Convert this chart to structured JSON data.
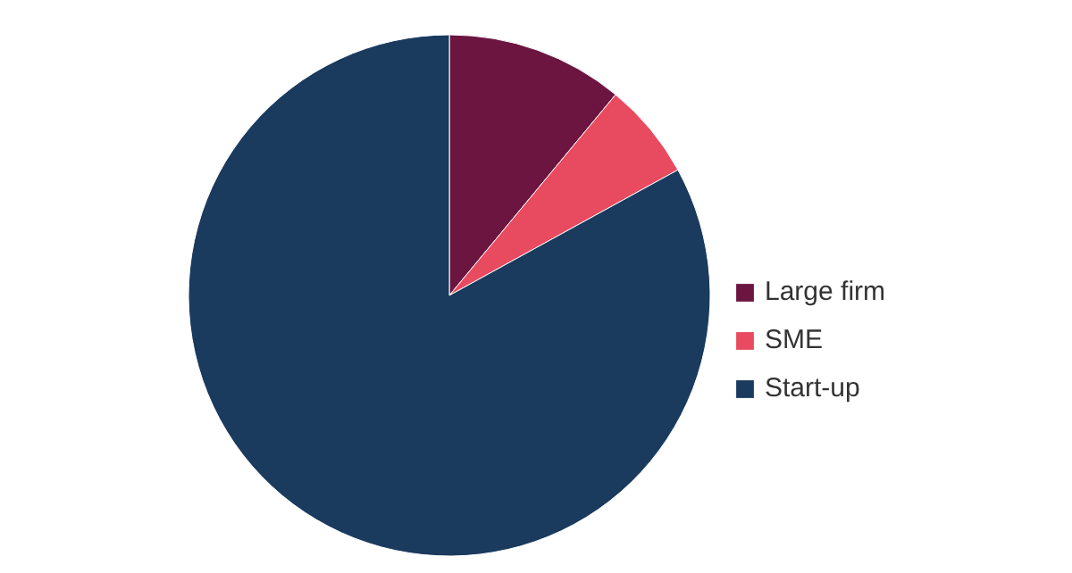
{
  "chart_data": {
    "type": "pie",
    "categories": [
      "Large firm",
      "SME",
      "Start-up"
    ],
    "values": [
      11,
      6,
      83
    ],
    "colors": [
      "#6b1540",
      "#e84a5f",
      "#1a3a5e"
    ],
    "legend": "right"
  }
}
